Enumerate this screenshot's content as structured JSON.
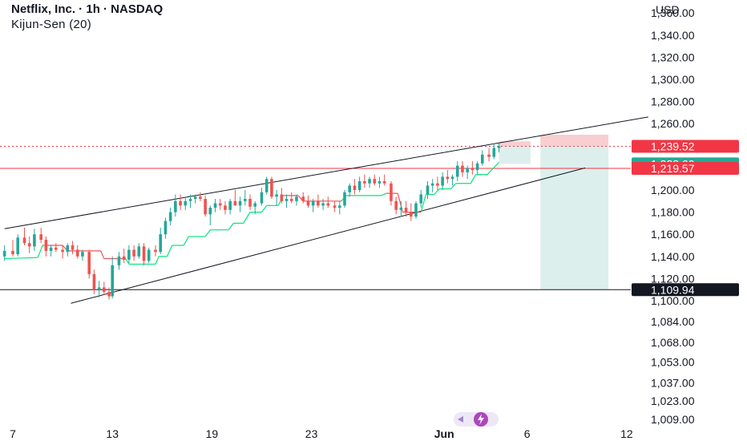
{
  "header": {
    "title": "Netflix, Inc. · 1h · NASDAQ",
    "indicator": "Kijun-Sen (20)",
    "currency": "USD"
  },
  "colors": {
    "up": "#26a69a",
    "down": "#ef5350",
    "kijun": "#00e676",
    "pivot": "#f23645",
    "trendline": "#131722",
    "stop_zone": "#f7c5c9",
    "target_zone": "#d6ece9"
  },
  "chart_data": {
    "type": "candlestick",
    "ylim": [
      1009,
      1380
    ],
    "y_ticks": [
      "1,360.00",
      "1,340.00",
      "1,320.00",
      "1,300.00",
      "1,280.00",
      "1,260.00",
      "1,200.00",
      "1,180.00",
      "1,160.00",
      "1,140.00",
      "1,120.00",
      "1,100.00",
      "1,084.00",
      "1,068.00",
      "1,053.00",
      "1,037.00",
      "1,023.00",
      "1,009.00"
    ],
    "y_tick_values": [
      1360,
      1340,
      1320,
      1300,
      1280,
      1260,
      1200,
      1180,
      1160,
      1140,
      1120,
      1100,
      1084,
      1068,
      1053,
      1037,
      1023,
      1009
    ],
    "x_ticks": [
      {
        "label": "7",
        "x": 0
      },
      {
        "label": "13",
        "x": 6
      },
      {
        "label": "19",
        "x": 12
      },
      {
        "label": "23",
        "x": 18
      },
      {
        "label": "Jun",
        "x": 26,
        "bold": true
      },
      {
        "label": "6",
        "x": 31
      },
      {
        "label": "12",
        "x": 37
      }
    ],
    "price_labels": [
      {
        "text": "1,239.52",
        "value": 1239.52,
        "color": "#f23645"
      },
      {
        "text": "1,223.60",
        "value": 1223.6,
        "color": "#22ab94"
      },
      {
        "text": "1,219.57",
        "value": 1219.57,
        "color": "#f23645"
      },
      {
        "text": "1,109.94",
        "value": 1109.94,
        "color": "#131722"
      }
    ],
    "horizontal_lines": [
      {
        "name": "resistance-dotted",
        "value": 1239.52,
        "style": "dotted",
        "color": "#f23645"
      },
      {
        "name": "pivot-line",
        "value": 1219.57,
        "style": "solid",
        "color": "#f23645"
      },
      {
        "name": "support-line",
        "value": 1109.94,
        "style": "solid",
        "color": "#131722"
      }
    ],
    "trendlines": [
      {
        "name": "upper-trendline",
        "from": [
          -0.5,
          1165
        ],
        "to": [
          38.3,
          1266
        ]
      },
      {
        "name": "lower-trendline",
        "from": [
          3.5,
          1098
        ],
        "to": [
          34.5,
          1220
        ]
      }
    ],
    "position_zones": [
      {
        "name": "short-stop-zone-1",
        "x0": 29.3,
        "x1": 31.2,
        "top": 1244,
        "bottom": 1239.52,
        "color": "#f7c5c9"
      },
      {
        "name": "short-target-zone-1",
        "x0": 29.3,
        "x1": 31.2,
        "top": 1239.52,
        "bottom": 1223.6,
        "color": "#d6ece9"
      },
      {
        "name": "short-stop-zone-2",
        "x0": 31.8,
        "x1": 35.9,
        "top": 1250,
        "bottom": 1239.52,
        "color": "#f7c5c9"
      },
      {
        "name": "short-target-zone-2",
        "x0": 31.8,
        "x1": 35.9,
        "top": 1239.52,
        "bottom": 1109.94,
        "color": "#d6ece9"
      }
    ],
    "kijun": [
      [
        -0.5,
        1138
      ],
      [
        1.5,
        1139
      ],
      [
        1.8,
        1150
      ],
      [
        3,
        1150
      ],
      [
        3.3,
        1145
      ],
      [
        5.3,
        1145
      ],
      [
        5.5,
        1138
      ],
      [
        6.8,
        1138
      ],
      [
        7.0,
        1133
      ],
      [
        8.6,
        1133
      ],
      [
        8.8,
        1140
      ],
      [
        9.3,
        1140
      ],
      [
        9.6,
        1150
      ],
      [
        10.3,
        1150
      ],
      [
        10.6,
        1158
      ],
      [
        11.6,
        1158
      ],
      [
        11.9,
        1164
      ],
      [
        13.0,
        1164
      ],
      [
        13.3,
        1170
      ],
      [
        13.9,
        1170
      ],
      [
        14.3,
        1180
      ],
      [
        15.0,
        1180
      ],
      [
        15.3,
        1186
      ],
      [
        16.0,
        1186
      ],
      [
        16.3,
        1195
      ],
      [
        17.2,
        1195
      ],
      [
        17.5,
        1190
      ],
      [
        19.8,
        1190
      ],
      [
        20.1,
        1195
      ],
      [
        22.2,
        1195
      ],
      [
        22.5,
        1197
      ],
      [
        23.2,
        1197
      ],
      [
        23.5,
        1180
      ],
      [
        24.6,
        1180
      ],
      [
        24.9,
        1196
      ],
      [
        25.4,
        1196
      ],
      [
        25.7,
        1201
      ],
      [
        26.4,
        1201
      ],
      [
        26.7,
        1206
      ],
      [
        27.6,
        1206
      ],
      [
        27.9,
        1214
      ],
      [
        28.6,
        1214
      ],
      [
        29.3,
        1225
      ]
    ],
    "candles": [
      [
        -0.5,
        1140,
        1150,
        1136,
        1145
      ],
      [
        0.0,
        1145,
        1155,
        1140,
        1142
      ],
      [
        0.3,
        1142,
        1160,
        1140,
        1157
      ],
      [
        0.7,
        1157,
        1166,
        1150,
        1152
      ],
      [
        1.0,
        1152,
        1158,
        1143,
        1149
      ],
      [
        1.3,
        1149,
        1165,
        1145,
        1160
      ],
      [
        1.7,
        1160,
        1166,
        1152,
        1155
      ],
      [
        2.0,
        1155,
        1158,
        1140,
        1145
      ],
      [
        2.3,
        1145,
        1150,
        1140,
        1148
      ],
      [
        2.6,
        1148,
        1152,
        1144,
        1146
      ],
      [
        3.0,
        1146,
        1150,
        1138,
        1144
      ],
      [
        3.3,
        1144,
        1152,
        1140,
        1150
      ],
      [
        3.6,
        1150,
        1154,
        1142,
        1146
      ],
      [
        3.9,
        1146,
        1150,
        1138,
        1140
      ],
      [
        4.2,
        1140,
        1146,
        1136,
        1144
      ],
      [
        4.6,
        1144,
        1146,
        1120,
        1124
      ],
      [
        4.9,
        1124,
        1128,
        1106,
        1110
      ],
      [
        5.2,
        1110,
        1118,
        1103,
        1112
      ],
      [
        5.5,
        1112,
        1117,
        1105,
        1108
      ],
      [
        5.8,
        1108,
        1112,
        1101,
        1104
      ],
      [
        6.0,
        1104,
        1140,
        1102,
        1132
      ],
      [
        6.4,
        1132,
        1144,
        1128,
        1140
      ],
      [
        6.7,
        1140,
        1147,
        1134,
        1137
      ],
      [
        7.0,
        1137,
        1150,
        1134,
        1146
      ],
      [
        7.3,
        1146,
        1150,
        1136,
        1140
      ],
      [
        7.6,
        1140,
        1152,
        1138,
        1149
      ],
      [
        7.9,
        1149,
        1152,
        1132,
        1136
      ],
      [
        8.2,
        1136,
        1148,
        1134,
        1146
      ],
      [
        8.6,
        1146,
        1150,
        1140,
        1144
      ],
      [
        8.9,
        1144,
        1166,
        1142,
        1160
      ],
      [
        9.2,
        1160,
        1175,
        1156,
        1172
      ],
      [
        9.5,
        1172,
        1184,
        1168,
        1180
      ],
      [
        9.8,
        1180,
        1196,
        1176,
        1190
      ],
      [
        10.1,
        1190,
        1196,
        1182,
        1186
      ],
      [
        10.4,
        1186,
        1194,
        1182,
        1190
      ],
      [
        10.7,
        1190,
        1196,
        1184,
        1192
      ],
      [
        11.0,
        1192,
        1196,
        1188,
        1194
      ],
      [
        11.3,
        1194,
        1198,
        1190,
        1192
      ],
      [
        11.6,
        1192,
        1195,
        1176,
        1178
      ],
      [
        11.9,
        1178,
        1186,
        1168,
        1184
      ],
      [
        12.2,
        1184,
        1192,
        1180,
        1188
      ],
      [
        12.5,
        1188,
        1192,
        1182,
        1186
      ],
      [
        12.8,
        1186,
        1190,
        1178,
        1182
      ],
      [
        13.1,
        1182,
        1192,
        1178,
        1190
      ],
      [
        13.4,
        1190,
        1200,
        1186,
        1186
      ],
      [
        13.7,
        1186,
        1194,
        1180,
        1190
      ],
      [
        14.0,
        1190,
        1200,
        1186,
        1192
      ],
      [
        14.3,
        1192,
        1196,
        1182,
        1185
      ],
      [
        14.6,
        1185,
        1190,
        1178,
        1188
      ],
      [
        15.0,
        1188,
        1202,
        1186,
        1198
      ],
      [
        15.3,
        1198,
        1212,
        1196,
        1210
      ],
      [
        15.6,
        1210,
        1212,
        1192,
        1194
      ],
      [
        15.9,
        1194,
        1200,
        1186,
        1196
      ],
      [
        16.2,
        1196,
        1202,
        1188,
        1190
      ],
      [
        16.5,
        1190,
        1196,
        1184,
        1192
      ],
      [
        16.8,
        1192,
        1198,
        1188,
        1190
      ],
      [
        17.1,
        1190,
        1196,
        1186,
        1194
      ],
      [
        17.5,
        1194,
        1198,
        1188,
        1190
      ],
      [
        17.8,
        1190,
        1195,
        1184,
        1186
      ],
      [
        18.1,
        1186,
        1192,
        1180,
        1190
      ],
      [
        18.4,
        1190,
        1196,
        1184,
        1186
      ],
      [
        18.7,
        1186,
        1192,
        1182,
        1188
      ],
      [
        19.0,
        1188,
        1194,
        1184,
        1186
      ],
      [
        19.4,
        1186,
        1190,
        1180,
        1184
      ],
      [
        19.7,
        1184,
        1190,
        1178,
        1186
      ],
      [
        20.0,
        1186,
        1200,
        1184,
        1198
      ],
      [
        20.3,
        1198,
        1206,
        1194,
        1204
      ],
      [
        20.6,
        1204,
        1210,
        1196,
        1200
      ],
      [
        20.9,
        1200,
        1212,
        1198,
        1208
      ],
      [
        21.2,
        1208,
        1214,
        1202,
        1206
      ],
      [
        21.5,
        1206,
        1212,
        1202,
        1210
      ],
      [
        21.8,
        1210,
        1214,
        1204,
        1206
      ],
      [
        22.1,
        1206,
        1212,
        1202,
        1208
      ],
      [
        22.4,
        1208,
        1214,
        1204,
        1206
      ],
      [
        22.8,
        1206,
        1208,
        1186,
        1190
      ],
      [
        23.1,
        1190,
        1194,
        1178,
        1182
      ],
      [
        23.4,
        1182,
        1190,
        1176,
        1184
      ],
      [
        23.7,
        1184,
        1190,
        1176,
        1180
      ],
      [
        24.0,
        1180,
        1188,
        1172,
        1176
      ],
      [
        24.3,
        1176,
        1190,
        1174,
        1188
      ],
      [
        24.6,
        1188,
        1200,
        1184,
        1196
      ],
      [
        25.0,
        1196,
        1208,
        1192,
        1204
      ],
      [
        25.3,
        1204,
        1210,
        1198,
        1206
      ],
      [
        25.6,
        1206,
        1212,
        1200,
        1204
      ],
      [
        25.9,
        1204,
        1216,
        1200,
        1212
      ],
      [
        26.2,
        1212,
        1218,
        1206,
        1210
      ],
      [
        26.5,
        1210,
        1214,
        1204,
        1212
      ],
      [
        26.8,
        1212,
        1226,
        1208,
        1222
      ],
      [
        27.1,
        1222,
        1226,
        1212,
        1216
      ],
      [
        27.4,
        1216,
        1222,
        1210,
        1220
      ],
      [
        27.7,
        1220,
        1226,
        1214,
        1218
      ],
      [
        28.0,
        1218,
        1226,
        1214,
        1224
      ],
      [
        28.3,
        1224,
        1236,
        1222,
        1232
      ],
      [
        28.7,
        1232,
        1238,
        1226,
        1230
      ],
      [
        29.0,
        1230,
        1242,
        1228,
        1238
      ],
      [
        29.3,
        1238,
        1242,
        1234,
        1239.52
      ]
    ]
  }
}
